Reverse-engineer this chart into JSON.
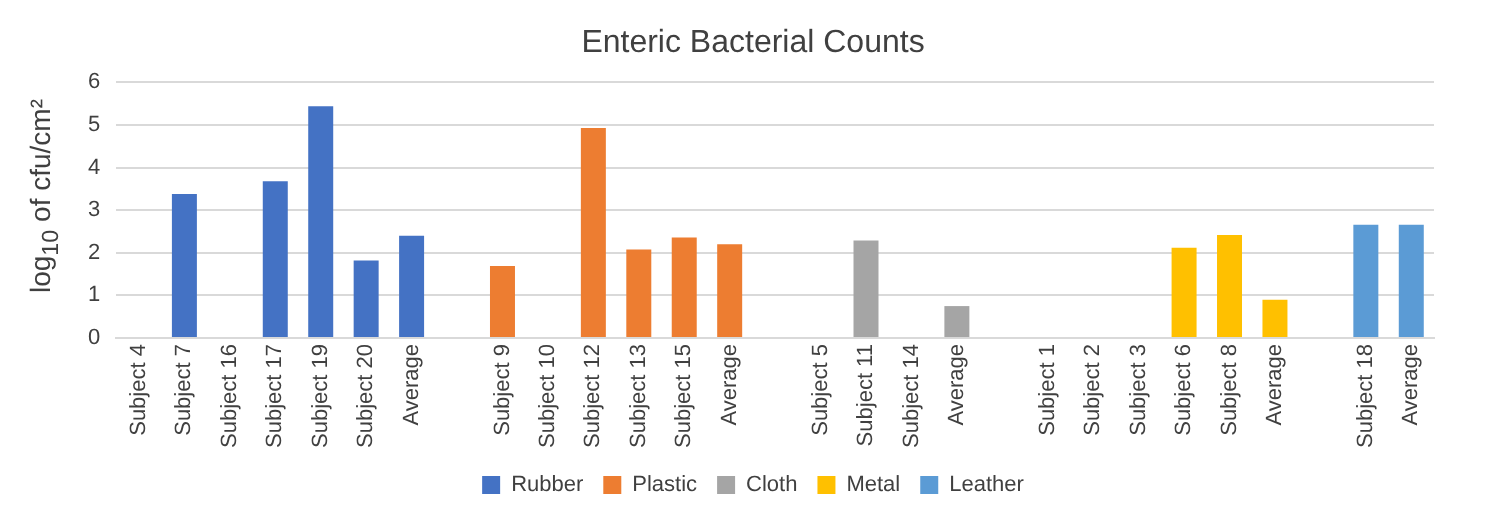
{
  "chart_data": {
    "type": "bar",
    "title": "Enteric Bacterial Counts",
    "ylabel": "log$_{10}$ of cfu/cm²",
    "categories": [
      "Subject 4",
      "Subject 7",
      "Subject 16",
      "Subject 17",
      "Subject 19",
      "Subject 20",
      "Average",
      null,
      "Subject 9",
      "Subject 10",
      "Subject 12",
      "Subject 13",
      "Subject 15",
      "Average",
      null,
      "Subject 5",
      "Subject 11",
      "Subject 14",
      "Average",
      null,
      "Subject 1",
      "Subject 2",
      "Subject 3",
      "Subject 6",
      "Subject 8",
      "Average",
      null,
      "Subject 18",
      "Average"
    ],
    "series": [
      {
        "name": "Rubber",
        "color": "#4472c4",
        "values": [
          null,
          3.38,
          null,
          3.68,
          5.44,
          1.82,
          2.4,
          null,
          null,
          null,
          null,
          null,
          null,
          null,
          null,
          null,
          null,
          null,
          null,
          null,
          null,
          null,
          null,
          null,
          null,
          null,
          null,
          null,
          null
        ]
      },
      {
        "name": "Plastic",
        "color": "#ed7d31",
        "values": [
          null,
          null,
          null,
          null,
          null,
          null,
          null,
          null,
          1.69,
          null,
          4.93,
          2.08,
          2.36,
          2.2,
          null,
          null,
          null,
          null,
          null,
          null,
          null,
          null,
          null,
          null,
          null,
          null,
          null,
          null,
          null
        ]
      },
      {
        "name": "Cloth",
        "color": "#a5a5a5",
        "values": [
          null,
          null,
          null,
          null,
          null,
          null,
          null,
          null,
          null,
          null,
          null,
          null,
          null,
          null,
          null,
          null,
          2.29,
          null,
          0.75,
          null,
          null,
          null,
          null,
          null,
          null,
          null,
          null,
          null,
          null
        ]
      },
      {
        "name": "Metal",
        "color": "#ffc000",
        "values": [
          null,
          null,
          null,
          null,
          null,
          null,
          null,
          null,
          null,
          null,
          null,
          null,
          null,
          null,
          null,
          null,
          null,
          null,
          null,
          null,
          null,
          null,
          null,
          2.12,
          2.42,
          0.9,
          null,
          null,
          null
        ]
      },
      {
        "name": "Leather",
        "color": "#5b9bd5",
        "values": [
          null,
          null,
          null,
          null,
          null,
          null,
          null,
          null,
          null,
          null,
          null,
          null,
          null,
          null,
          null,
          null,
          null,
          null,
          null,
          null,
          null,
          null,
          null,
          null,
          null,
          null,
          null,
          2.66,
          2.66
        ]
      }
    ],
    "ylim": [
      0,
      6
    ],
    "yticks": [
      0,
      1,
      2,
      3,
      4,
      5,
      6
    ],
    "grid": "y",
    "legend": "bottom"
  }
}
